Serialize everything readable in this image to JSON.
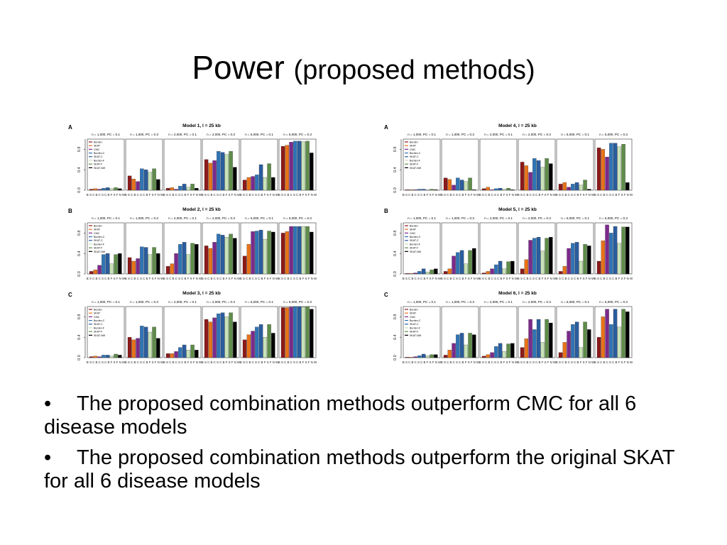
{
  "slide": {
    "title_main": "Power",
    "title_sub": "(proposed methods)"
  },
  "bullets": [
    {
      "text": "The proposed combination methods outperform CMC for all 6 disease models"
    },
    {
      "text": "The proposed combination methods outperform the original SKAT for all 6 disease models"
    }
  ],
  "colors": [
    "#8b1a1a",
    "#e8731a",
    "#7b2a8b",
    "#2f74b5",
    "#2a5d9e",
    "#c8e2b8",
    "#5f8c4a",
    "#000000"
  ],
  "legend_labels": [
    "Burden",
    "SKAT",
    "CMC",
    "Burden-C",
    "SKAT-C",
    "Burden-F",
    "SKAT-F",
    "SKAT-NW"
  ],
  "tick_labels": [
    "0.0",
    "0.4",
    "0.8"
  ],
  "x_labels": "B S C B C S C B F S F N W",
  "chart_data": [
    {
      "type": "bar",
      "panel": "A",
      "title": "Model 1, l = 25 kb",
      "ylim": [
        0,
        1
      ],
      "groups": [
        "n = 1,000, PC = 0.1",
        "n = 1,000, PC = 0.3",
        "n = 2,000, PC = 0.1",
        "n = 2,000, PC = 0.3",
        "n = 5,000, PC = 0.1",
        "n = 5,000, PC = 0.3"
      ],
      "values": [
        [
          0.02,
          0.03,
          0.02,
          0.04,
          0.05,
          0.03,
          0.05,
          0.03
        ],
        [
          0.28,
          0.22,
          0.17,
          0.42,
          0.4,
          0.35,
          0.42,
          0.21
        ],
        [
          0.04,
          0.05,
          0.02,
          0.08,
          0.12,
          0.06,
          0.12,
          0.04
        ],
        [
          0.6,
          0.53,
          0.58,
          0.76,
          0.74,
          0.7,
          0.76,
          0.45
        ],
        [
          0.2,
          0.25,
          0.27,
          0.3,
          0.5,
          0.25,
          0.52,
          0.25
        ],
        [
          0.86,
          0.88,
          0.94,
          0.96,
          0.96,
          0.95,
          0.96,
          0.73
        ]
      ]
    },
    {
      "type": "bar",
      "panel": "B",
      "title": "Model 2, l = 25 kb",
      "ylim": [
        0,
        1
      ],
      "groups": [
        "n = 1,000, PC = 0.1",
        "n = 1,000, PC = 0.3",
        "n = 2,000, PC = 0.1",
        "n = 2,000, PC = 0.3",
        "n = 5,000, PC = 0.1",
        "n = 5,000, PC = 0.3"
      ],
      "values": [
        [
          0.05,
          0.08,
          0.17,
          0.38,
          0.4,
          0.2,
          0.38,
          0.4
        ],
        [
          0.32,
          0.25,
          0.3,
          0.53,
          0.52,
          0.38,
          0.52,
          0.4
        ],
        [
          0.15,
          0.2,
          0.4,
          0.58,
          0.62,
          0.38,
          0.6,
          0.58
        ],
        [
          0.55,
          0.5,
          0.62,
          0.78,
          0.76,
          0.72,
          0.78,
          0.7
        ],
        [
          0.35,
          0.58,
          0.83,
          0.84,
          0.86,
          0.68,
          0.84,
          0.82
        ],
        [
          0.8,
          0.83,
          0.93,
          0.93,
          0.93,
          0.93,
          0.93,
          0.82
        ]
      ]
    },
    {
      "type": "bar",
      "panel": "C",
      "title": "Model 3, l = 25 kb",
      "ylim": [
        0,
        1
      ],
      "groups": [
        "n = 1,000, PC = 0.1",
        "n = 1,000, PC = 0.3",
        "n = 2,000, PC = 0.1",
        "n = 2,000, PC = 0.3",
        "n = 5,000, PC = 0.1",
        "n = 5,000, PC = 0.3"
      ],
      "values": [
        [
          0.02,
          0.03,
          0.02,
          0.05,
          0.05,
          0.03,
          0.07,
          0.05
        ],
        [
          0.4,
          0.35,
          0.38,
          0.62,
          0.6,
          0.5,
          0.6,
          0.38
        ],
        [
          0.08,
          0.08,
          0.12,
          0.2,
          0.25,
          0.15,
          0.25,
          0.15
        ],
        [
          0.75,
          0.7,
          0.78,
          0.86,
          0.88,
          0.8,
          0.88,
          0.7
        ],
        [
          0.35,
          0.45,
          0.52,
          0.6,
          0.65,
          0.4,
          0.65,
          0.48
        ],
        [
          0.98,
          0.98,
          0.99,
          1.0,
          1.0,
          0.99,
          1.0,
          0.95
        ]
      ]
    },
    {
      "type": "bar",
      "panel": "A",
      "title": "Model 4, l = 25 kb",
      "ylim": [
        0,
        1
      ],
      "groups": [
        "n = 1,000, PC = 0.1",
        "n = 1,000, PC = 0.3",
        "n = 2,000, PC = 0.1",
        "n = 2,000, PC = 0.3",
        "n = 5,000, PC = 0.1",
        "n = 5,000, PC = 0.3"
      ],
      "values": [
        [
          0.01,
          0.01,
          0.01,
          0.02,
          0.02,
          0.01,
          0.02,
          0.01
        ],
        [
          0.24,
          0.21,
          0.1,
          0.24,
          0.2,
          0.17,
          0.24,
          0.01
        ],
        [
          0.03,
          0.06,
          0.01,
          0.03,
          0.04,
          0.02,
          0.04,
          0.01
        ],
        [
          0.55,
          0.48,
          0.35,
          0.62,
          0.58,
          0.45,
          0.62,
          0.52
        ],
        [
          0.12,
          0.15,
          0.06,
          0.12,
          0.15,
          0.1,
          0.2,
          0.02
        ],
        [
          0.83,
          0.8,
          0.65,
          0.92,
          0.92,
          0.85,
          0.9,
          0.15
        ]
      ]
    },
    {
      "type": "bar",
      "panel": "B",
      "title": "Model 5, l = 25 kb",
      "ylim": [
        0,
        1
      ],
      "groups": [
        "n = 1,000, PC = 0.1",
        "n = 1,000, PC = 0.3",
        "n = 2,000, PC = 0.1",
        "n = 2,000, PC = 0.3",
        "n = 5,000, PC = 0.1",
        "n = 5,000, PC = 0.3"
      ],
      "values": [
        [
          0.01,
          0.01,
          0.02,
          0.05,
          0.1,
          0.04,
          0.08,
          0.1
        ],
        [
          0.05,
          0.1,
          0.35,
          0.42,
          0.46,
          0.2,
          0.46,
          0.5
        ],
        [
          0.02,
          0.05,
          0.1,
          0.18,
          0.25,
          0.1,
          0.24,
          0.25
        ],
        [
          0.1,
          0.28,
          0.66,
          0.7,
          0.72,
          0.45,
          0.7,
          0.72
        ],
        [
          0.05,
          0.15,
          0.5,
          0.6,
          0.62,
          0.25,
          0.58,
          0.55
        ],
        [
          0.25,
          0.65,
          0.96,
          0.8,
          0.93,
          0.6,
          0.92,
          0.92
        ]
      ]
    },
    {
      "type": "bar",
      "panel": "C",
      "title": "Model 6, l = 25 kb",
      "ylim": [
        0,
        1
      ],
      "groups": [
        "n = 1,000, PC = 0.1",
        "n = 1,000, PC = 0.3",
        "n = 2,000, PC = 0.1",
        "n = 2,000, PC = 0.3",
        "n = 5,000, PC = 0.1",
        "n = 5,000, PC = 0.3"
      ],
      "values": [
        [
          0.01,
          0.01,
          0.02,
          0.04,
          0.07,
          0.04,
          0.06,
          0.06
        ],
        [
          0.05,
          0.15,
          0.28,
          0.45,
          0.48,
          0.25,
          0.48,
          0.45
        ],
        [
          0.03,
          0.06,
          0.1,
          0.22,
          0.28,
          0.12,
          0.27,
          0.28
        ],
        [
          0.2,
          0.37,
          0.75,
          0.55,
          0.75,
          0.3,
          0.75,
          0.68
        ],
        [
          0.1,
          0.3,
          0.52,
          0.65,
          0.7,
          0.2,
          0.7,
          0.55
        ],
        [
          0.4,
          0.8,
          0.95,
          0.65,
          0.95,
          0.6,
          0.95,
          0.9
        ]
      ]
    }
  ]
}
